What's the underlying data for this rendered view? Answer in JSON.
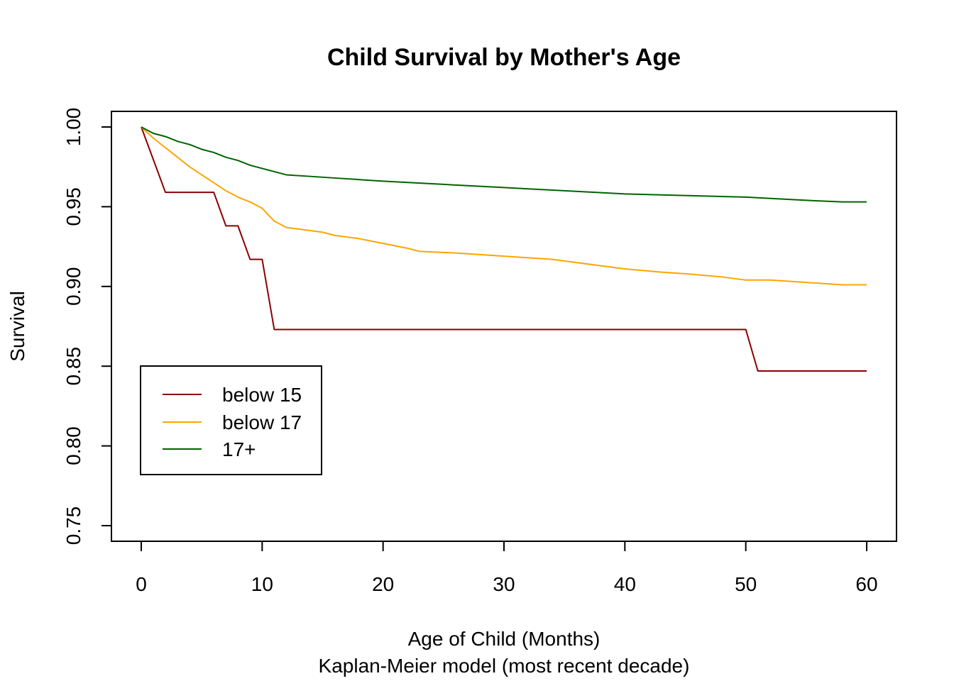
{
  "chart_data": {
    "type": "line",
    "title": "Child Survival by Mother's Age",
    "xlabel": "Age of Child (Months)",
    "xlabel_sub": "Kaplan-Meier model (most recent decade)",
    "ylabel": "Survival",
    "xlim": [
      0,
      60
    ],
    "ylim": [
      0.75,
      1.0
    ],
    "x_ticks": [
      0,
      10,
      20,
      30,
      40,
      50,
      60
    ],
    "x_tick_labels": [
      "0",
      "10",
      "20",
      "30",
      "40",
      "50",
      "60"
    ],
    "y_ticks": [
      0.75,
      0.8,
      0.85,
      0.9,
      0.95,
      1.0
    ],
    "y_tick_labels": [
      "0.75",
      "0.80",
      "0.85",
      "0.90",
      "0.95",
      "1.00"
    ],
    "grid": false,
    "legend_position": "bottom-left",
    "series": [
      {
        "name": "below 15",
        "color": "#8B0000",
        "step": true,
        "x": [
          0,
          2,
          6,
          7,
          8,
          9,
          10,
          11,
          50,
          51,
          60
        ],
        "y": [
          1.0,
          0.959,
          0.959,
          0.938,
          0.938,
          0.917,
          0.917,
          0.873,
          0.873,
          0.847,
          0.847
        ]
      },
      {
        "name": "below 17",
        "color": "#FFA500",
        "step": false,
        "x": [
          0,
          1,
          2,
          3,
          4,
          5,
          6,
          7,
          8,
          9,
          10,
          11,
          12,
          14,
          15,
          16,
          18,
          20,
          22,
          23,
          26,
          30,
          32,
          34,
          36,
          38,
          40,
          43,
          45,
          48,
          50,
          52,
          54,
          56,
          58,
          60
        ],
        "y": [
          1.0,
          0.993,
          0.987,
          0.981,
          0.975,
          0.97,
          0.965,
          0.96,
          0.956,
          0.953,
          0.949,
          0.941,
          0.937,
          0.935,
          0.934,
          0.932,
          0.93,
          0.927,
          0.924,
          0.922,
          0.921,
          0.919,
          0.918,
          0.917,
          0.915,
          0.913,
          0.911,
          0.909,
          0.908,
          0.906,
          0.904,
          0.904,
          0.903,
          0.902,
          0.901,
          0.901
        ]
      },
      {
        "name": "17+",
        "color": "#006400",
        "step": false,
        "x": [
          0,
          1,
          2,
          3,
          4,
          5,
          6,
          7,
          8,
          9,
          10,
          11,
          12,
          14,
          16,
          18,
          20,
          25,
          30,
          35,
          40,
          45,
          50,
          55,
          58,
          60
        ],
        "y": [
          1.0,
          0.996,
          0.994,
          0.991,
          0.989,
          0.986,
          0.984,
          0.981,
          0.979,
          0.976,
          0.974,
          0.972,
          0.97,
          0.969,
          0.968,
          0.967,
          0.966,
          0.964,
          0.962,
          0.96,
          0.958,
          0.957,
          0.956,
          0.954,
          0.953,
          0.953
        ]
      }
    ]
  }
}
